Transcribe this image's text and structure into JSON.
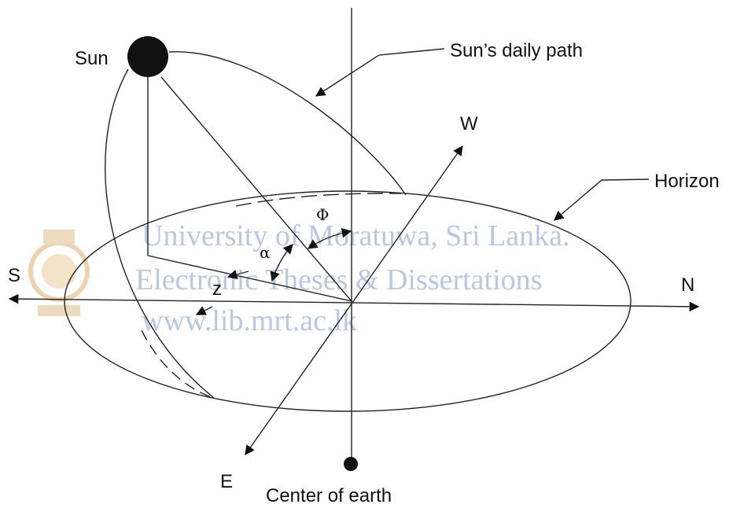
{
  "labels": {
    "sun": "Sun",
    "sun_path": "Sun’s daily path",
    "west": "W",
    "horizon": "Horizon",
    "phi": "Φ",
    "alpha": "α",
    "south": "S",
    "zenith": "z",
    "north": "N",
    "east": "E",
    "center": "Center of earth"
  },
  "watermark": [
    "University of Moratuwa, Sri Lanka.",
    "Electronic Theses & Dissertations",
    "www.lib.mrt.ac.lk"
  ]
}
